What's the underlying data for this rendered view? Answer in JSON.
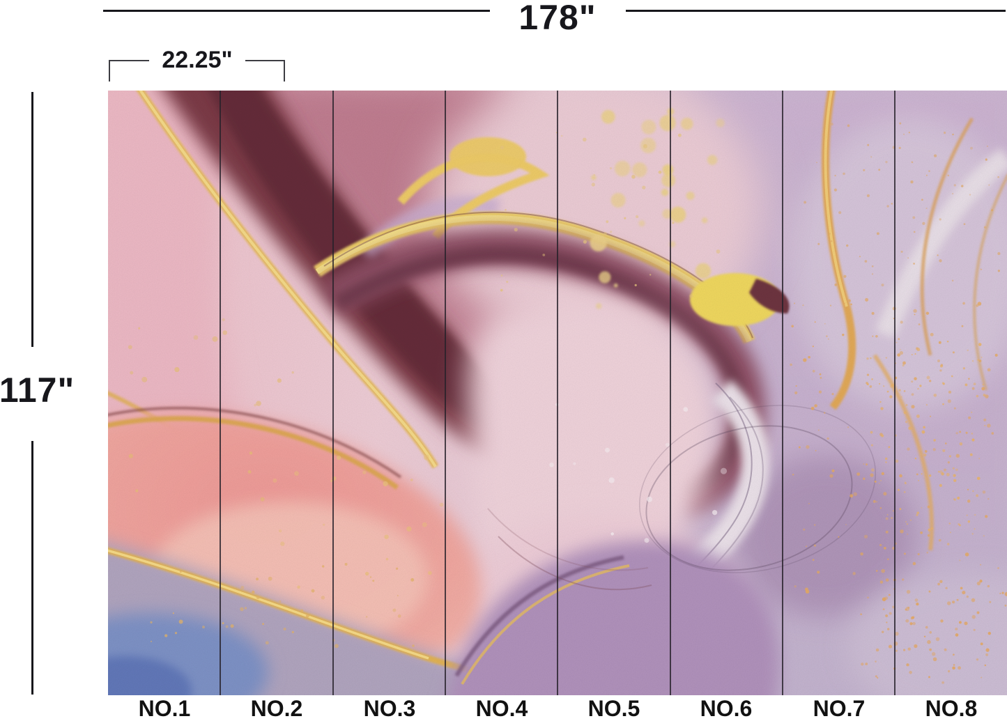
{
  "page": {
    "description": "Wallpaper mural sizing diagram with abstract pink-gold alcohol-ink artwork split into numbered panels"
  },
  "dimensions": {
    "total_width": "178\"",
    "panel_width": "22.25\"",
    "total_height": "117\""
  },
  "panels": [
    {
      "label": "NO.1"
    },
    {
      "label": "NO.2"
    },
    {
      "label": "NO.3"
    },
    {
      "label": "NO.4"
    },
    {
      "label": "NO.5"
    },
    {
      "label": "NO.6"
    },
    {
      "label": "NO.7"
    },
    {
      "label": "NO.8"
    }
  ],
  "panel_count": 8,
  "art_palette": {
    "gold": "#e8bd62",
    "bright_gold": "#f2d95e",
    "light_pink": "#eccdd6",
    "rose": "#c07d90",
    "maroon": "#7c3a47",
    "coral": "#ef9e9b",
    "lavender": "#cbb3d0",
    "purple_blob": "#b192bc",
    "grey_lavender": "#b1a5bf",
    "blue_corner": "#7e92c6",
    "annotation": "#17171c"
  }
}
